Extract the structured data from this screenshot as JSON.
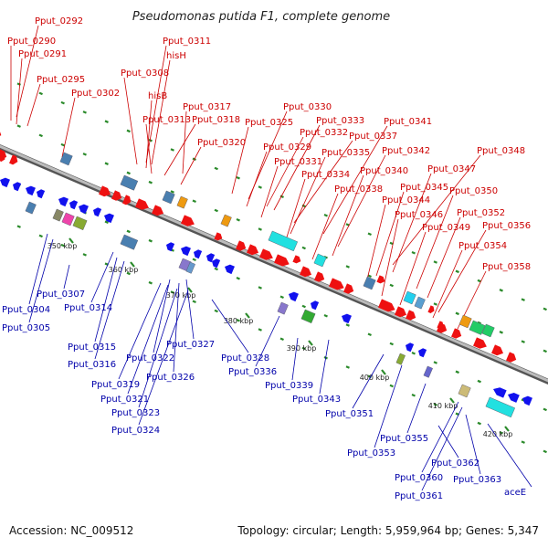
{
  "title": "Pseudomonas putida F1, complete genome",
  "footer": {
    "accession": "Accession: NC_009512",
    "summary": "Topology: circular; Length: 5,959,964 bp; Genes: 5,347"
  },
  "colors": {
    "forward_gene": "#ee1111",
    "reverse_gene": "#1111ee",
    "backbone": "#888888",
    "top_label": "#cc0000",
    "bottom_label": "#0000aa",
    "tick_dot": "#2a8a2a"
  },
  "ticks": [
    {
      "kb": 350,
      "label": "350 kbp"
    },
    {
      "kb": 360,
      "label": "360 kbp"
    },
    {
      "kb": 370,
      "label": "370 kbp"
    },
    {
      "kb": 380,
      "label": "380 kbp"
    },
    {
      "kb": 390,
      "label": "390 kbp"
    },
    {
      "kb": 400,
      "label": "400 kbp"
    },
    {
      "kb": 410,
      "label": "410 kbp"
    },
    {
      "kb": 420,
      "label": "420 kbp"
    }
  ],
  "top_labels": [
    "Pput_0292",
    "Pput_0290",
    "Pput_0291",
    "Pput_0295",
    "Pput_0302",
    "Pput_0311",
    "hisH",
    "Pput_0308",
    "hisB",
    "Pput_0317",
    "Pput_0313",
    "Pput_0318",
    "Pput_0320",
    "Pput_0325",
    "Pput_0330",
    "Pput_0329",
    "Pput_0332",
    "Pput_0333",
    "Pput_0331",
    "Pput_0337",
    "Pput_0341",
    "Pput_0335",
    "Pput_0334",
    "Pput_0342",
    "Pput_0340",
    "Pput_0348",
    "Pput_0338",
    "Pput_0347",
    "Pput_0345",
    "Pput_0344",
    "Pput_0350",
    "Pput_0346",
    "Pput_0352",
    "Pput_0349",
    "Pput_0356",
    "Pput_0354",
    "Pput_0358"
  ],
  "bottom_labels": [
    "Pput_0307",
    "Pput_0304",
    "Pput_0305",
    "Pput_0314",
    "Pput_0315",
    "Pput_0316",
    "Pput_0322",
    "Pput_0327",
    "Pput_0328",
    "Pput_0319",
    "Pput_0326",
    "Pput_0321",
    "Pput_0323",
    "Pput_0324",
    "Pput_0336",
    "Pput_0339",
    "Pput_0343",
    "Pput_0351",
    "Pput_0353",
    "Pput_0355",
    "Pput_0362",
    "Pput_0360",
    "Pput_0363",
    "Pput_0361",
    "aceE"
  ]
}
